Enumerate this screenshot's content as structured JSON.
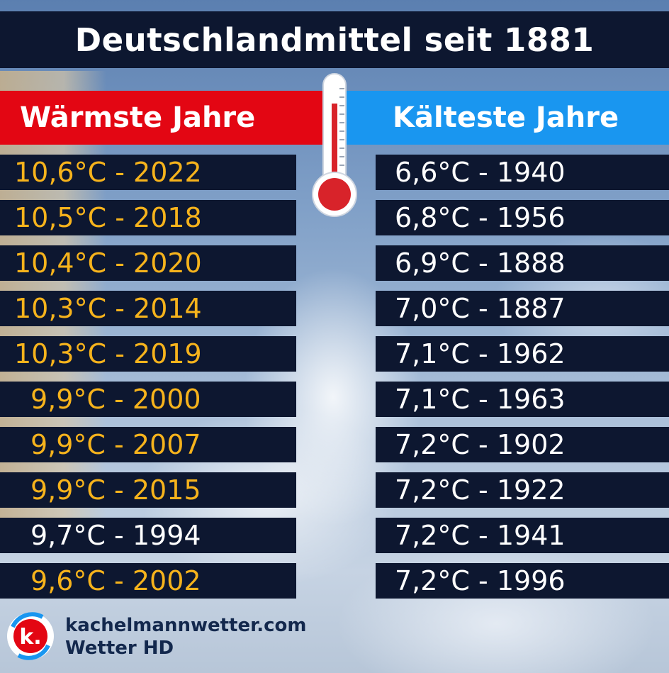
{
  "title": "Deutschlandmittel seit 1881",
  "warmest": {
    "header": "Wärmste Jahre",
    "rows": [
      {
        "text": "10,6°C - 2022",
        "color": "#f6b31c"
      },
      {
        "text": "10,5°C - 2018",
        "color": "#f6b31c"
      },
      {
        "text": "10,4°C - 2020",
        "color": "#f6b31c"
      },
      {
        "text": "10,3°C - 2014",
        "color": "#f6b31c"
      },
      {
        "text": "10,3°C - 2019",
        "color": "#f6b31c"
      },
      {
        "text": "9,9°C - 2000",
        "color": "#f6b31c"
      },
      {
        "text": "9,9°C - 2007",
        "color": "#f6b31c"
      },
      {
        "text": "9,9°C - 2015",
        "color": "#f6b31c"
      },
      {
        "text": "9,7°C - 1994",
        "color": "#ffffff"
      },
      {
        "text": "9,6°C - 2002",
        "color": "#f6b31c"
      }
    ]
  },
  "coldest": {
    "header": "Kälteste Jahre",
    "rows": [
      {
        "text": "6,6°C - 1940"
      },
      {
        "text": "6,8°C - 1956"
      },
      {
        "text": "6,9°C - 1888"
      },
      {
        "text": "7,0°C - 1887"
      },
      {
        "text": "7,1°C - 1962"
      },
      {
        "text": "7,1°C - 1963"
      },
      {
        "text": "7,2°C - 1902"
      },
      {
        "text": "7,2°C - 1922"
      },
      {
        "text": "7,2°C - 1941"
      },
      {
        "text": "7,2°C - 1996"
      }
    ]
  },
  "branding": {
    "site": "kachelmannwetter.com",
    "product": "Wetter HD",
    "logo_letter": "k."
  },
  "colors": {
    "dark_bar": "#0d1730",
    "warm_header": "#e30613",
    "cold_header": "#1996f0",
    "warm_text": "#f6b31c",
    "cold_text": "#ffffff"
  }
}
